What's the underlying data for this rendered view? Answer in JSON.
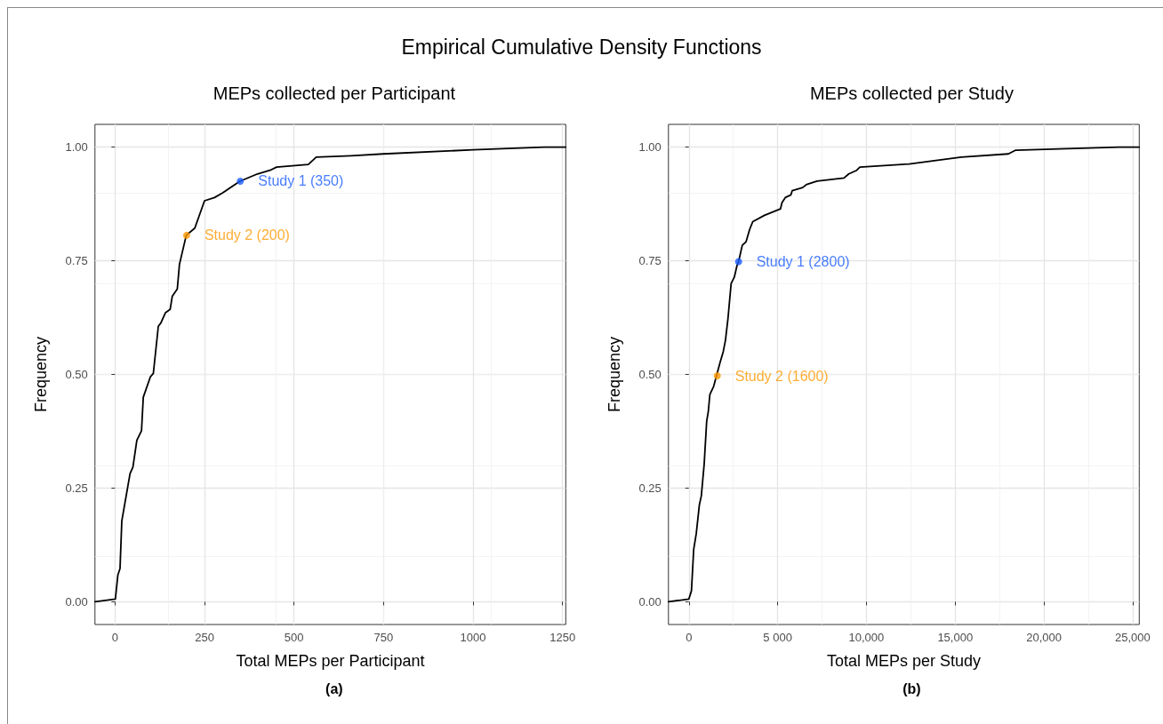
{
  "chart_data": [
    {
      "type": "line",
      "title": "Empirical Cumulative Density Functions",
      "subtitle": "MEPs collected per Participant",
      "xlabel": "Total MEPs per Participant",
      "ylabel": "Frequency",
      "annotations": [
        "(a)"
      ],
      "xlim": [
        -56,
        1259
      ],
      "xticks": [
        0,
        250,
        500,
        750,
        1000,
        1250
      ],
      "ylim": [
        -0.05,
        1.05
      ],
      "yticks": [
        {
          "value": 0,
          "label": "0.00"
        },
        {
          "value": 0.25,
          "label": "0.25"
        },
        {
          "value": 0.5,
          "label": "0.50"
        },
        {
          "value": 0.75,
          "label": "0.75"
        },
        {
          "value": 1,
          "label": "1.00"
        }
      ],
      "grid": true,
      "legend": false,
      "series": [
        {
          "type": "line",
          "color": "#000000",
          "marker": "none",
          "x": [
            -56,
            1,
            8,
            14,
            19,
            42,
            50,
            61,
            74,
            79,
            99,
            107,
            121,
            128,
            141,
            154,
            160,
            174,
            180,
            199,
            223,
            250,
            278,
            300,
            349,
            398,
            433,
            451,
            540,
            562,
            659,
            749,
            1000,
            1198,
            1259
          ],
          "values": [
            0,
            0.006,
            0.059,
            0.073,
            0.178,
            0.282,
            0.296,
            0.355,
            0.376,
            0.45,
            0.495,
            0.502,
            0.606,
            0.613,
            0.636,
            0.643,
            0.672,
            0.688,
            0.742,
            0.806,
            0.822,
            0.882,
            0.889,
            0.899,
            0.925,
            0.941,
            0.949,
            0.956,
            0.962,
            0.978,
            0.981,
            0.985,
            0.994,
            1,
            1
          ]
        },
        {
          "type": "scatter",
          "name": "Study 1 (350)",
          "color": "#1a5cff",
          "marker": "circle",
          "x": [
            350
          ],
          "values": [
            0.925
          ]
        },
        {
          "type": "scatter",
          "name": "Study 2 (200)",
          "color": "#ff9900",
          "marker": "circle",
          "x": [
            200
          ],
          "values": [
            0.806
          ]
        }
      ]
    },
    {
      "type": "line",
      "subtitle": "MEPs collected per Study",
      "xlabel": "Total MEPs per Study",
      "ylabel": "Frequency",
      "annotations": [
        "(b)"
      ],
      "xlim": [
        -1150,
        25370
      ],
      "xticks": [
        0,
        {
          "value": 5000,
          "label": "5 000"
        },
        {
          "value": 10000,
          "label": "10,000"
        },
        {
          "value": 15000,
          "label": "15,000"
        },
        {
          "value": 20000,
          "label": "20,000"
        },
        {
          "value": 25000,
          "label": "25,000"
        }
      ],
      "ylim": [
        -0.05,
        1.05
      ],
      "yticks": [
        {
          "value": 0,
          "label": "0.00"
        },
        {
          "value": 0.25,
          "label": "0.25"
        },
        {
          "value": 0.5,
          "label": "0.50"
        },
        {
          "value": 0.75,
          "label": "0.75"
        },
        {
          "value": 1,
          "label": "1.00"
        }
      ],
      "grid": true,
      "legend": false,
      "series": [
        {
          "type": "line",
          "color": "#000000",
          "marker": "none",
          "x": [
            -1150,
            0,
            145,
            271,
            416,
            591,
            702,
            862,
            1003,
            1093,
            1183,
            1398,
            1754,
            1935,
            2060,
            2205,
            2381,
            2561,
            2707,
            2800,
            3008,
            3223,
            3424,
            3599,
            4261,
            5158,
            5248,
            5429,
            5749,
            5820,
            6411,
            6642,
            7218,
            8737,
            9007,
            9454,
            9634,
            12406,
            15343,
            17995,
            18386,
            24206,
            25370
          ],
          "values": [
            0,
            0.006,
            0.024,
            0.115,
            0.15,
            0.213,
            0.233,
            0.303,
            0.397,
            0.418,
            0.456,
            0.474,
            0.526,
            0.55,
            0.575,
            0.624,
            0.7,
            0.714,
            0.739,
            0.748,
            0.784,
            0.792,
            0.819,
            0.836,
            0.85,
            0.864,
            0.878,
            0.889,
            0.895,
            0.904,
            0.911,
            0.918,
            0.925,
            0.932,
            0.941,
            0.949,
            0.956,
            0.963,
            0.978,
            0.985,
            0.993,
            1,
            1
          ]
        },
        {
          "type": "scatter",
          "name": "Study 1 (2800)",
          "color": "#1a5cff",
          "marker": "circle",
          "x": [
            2800
          ],
          "values": [
            0.748
          ]
        },
        {
          "type": "scatter",
          "name": "Study 2 (1600)",
          "color": "#ff9900",
          "marker": "circle",
          "x": [
            1600
          ],
          "values": [
            0.497
          ]
        }
      ]
    }
  ]
}
